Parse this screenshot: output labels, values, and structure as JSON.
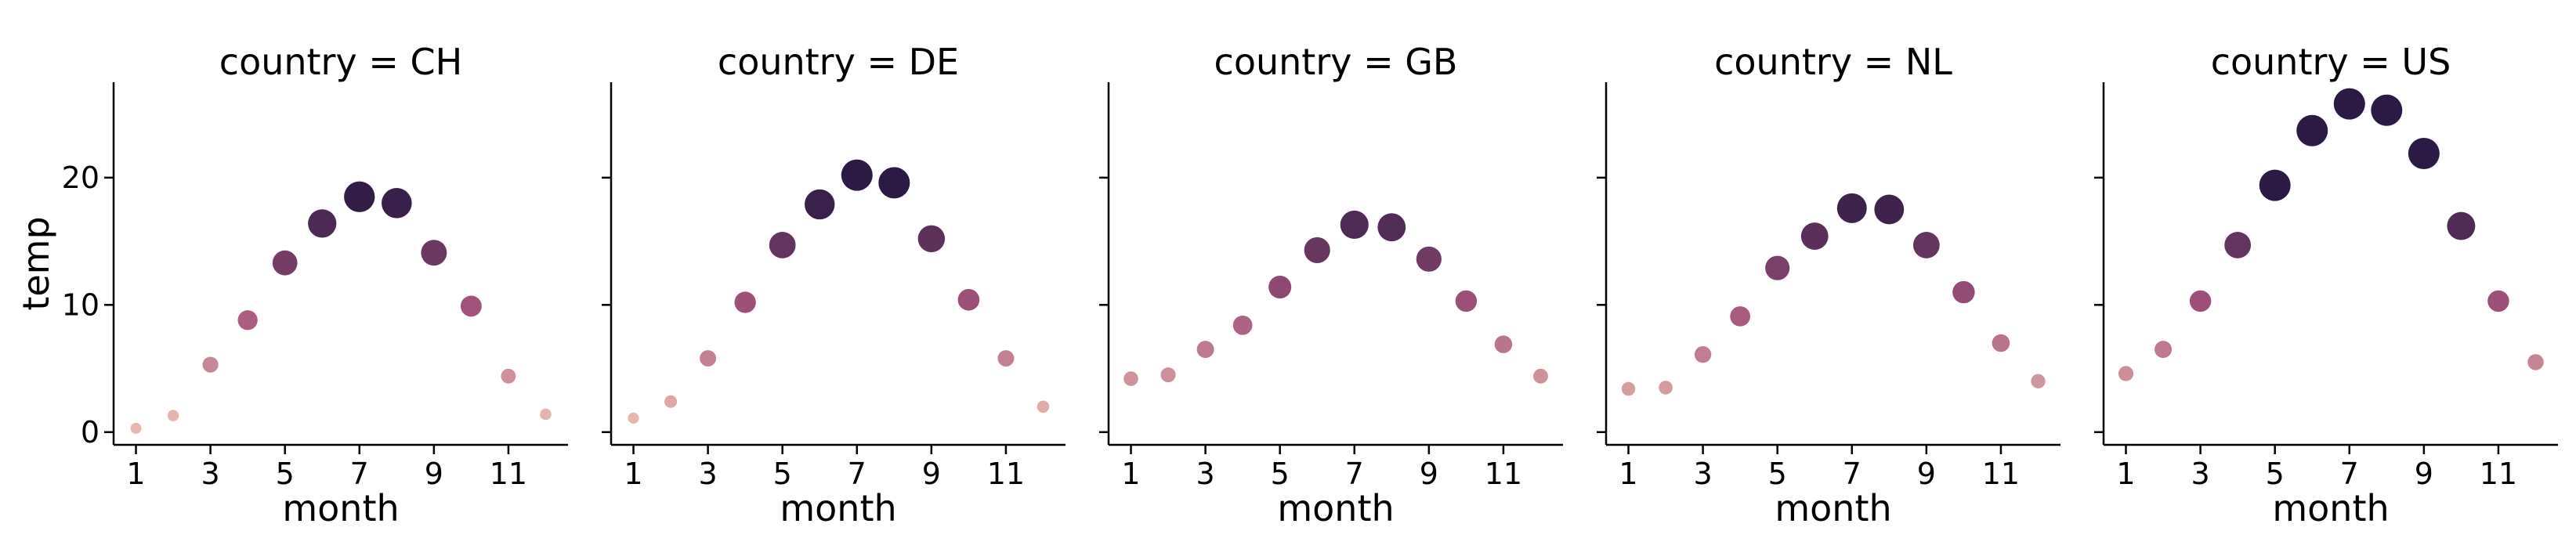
{
  "chart_data": {
    "type": "scatter",
    "facet_column": "country",
    "xlabel": "month",
    "ylabel": "temp",
    "xlim": [
      0.4,
      12.6
    ],
    "ylim": [
      -1,
      27.5
    ],
    "xticks": [
      1,
      3,
      5,
      7,
      9,
      11
    ],
    "yticks": [
      0,
      10,
      20
    ],
    "hue_size_encoding": "temp",
    "color_low": "#e8b7b0",
    "color_mid": "#a0527a",
    "color_high": "#2b1a44",
    "grid": false,
    "legend": "none",
    "facets": [
      {
        "title": "country = CH",
        "x": [
          1,
          2,
          3,
          4,
          5,
          6,
          7,
          8,
          9,
          10,
          11,
          12
        ],
        "y": [
          0.3,
          1.3,
          5.3,
          8.8,
          13.3,
          16.4,
          18.5,
          18.0,
          14.1,
          9.9,
          4.4,
          1.4
        ]
      },
      {
        "title": "country = DE",
        "x": [
          1,
          2,
          3,
          4,
          5,
          6,
          7,
          8,
          9,
          10,
          11,
          12
        ],
        "y": [
          1.1,
          2.4,
          5.8,
          10.2,
          14.7,
          17.9,
          20.2,
          19.6,
          15.2,
          10.4,
          5.8,
          2.0
        ]
      },
      {
        "title": "country = GB",
        "x": [
          1,
          2,
          3,
          4,
          5,
          6,
          7,
          8,
          9,
          10,
          11,
          12
        ],
        "y": [
          4.2,
          4.5,
          6.5,
          8.4,
          11.4,
          14.3,
          16.3,
          16.1,
          13.6,
          10.3,
          6.9,
          4.4
        ]
      },
      {
        "title": "country = NL",
        "x": [
          1,
          2,
          3,
          4,
          5,
          6,
          7,
          8,
          9,
          10,
          11,
          12
        ],
        "y": [
          3.4,
          3.5,
          6.1,
          9.1,
          12.9,
          15.4,
          17.6,
          17.5,
          14.7,
          11.0,
          7.0,
          4.0
        ]
      },
      {
        "title": "country = US",
        "x": [
          1,
          2,
          3,
          4,
          5,
          6,
          7,
          8,
          9,
          10,
          11,
          12
        ],
        "y": [
          4.6,
          6.5,
          10.3,
          14.7,
          19.4,
          23.7,
          25.8,
          25.3,
          21.9,
          16.2,
          10.3,
          5.5
        ]
      }
    ]
  }
}
